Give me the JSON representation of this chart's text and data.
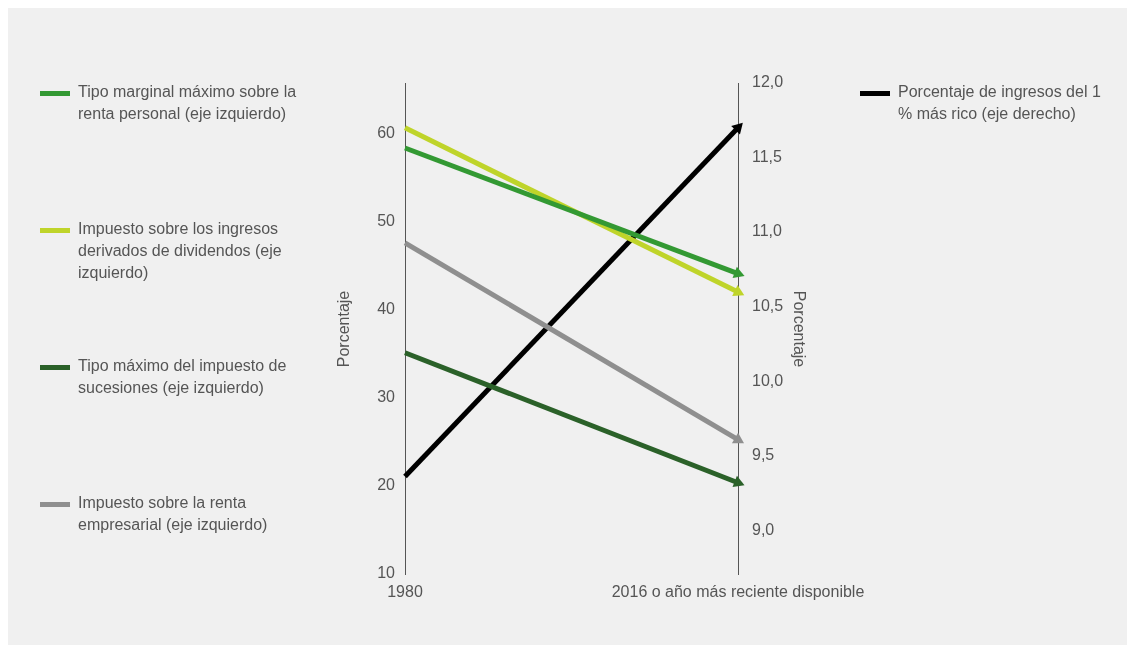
{
  "chart_data": {
    "type": "line",
    "categories": [
      "1980",
      "2016 o año más reciente disponible"
    ],
    "ylabel": "Porcentaje",
    "y2label": "Porcentaje",
    "ylim": [
      9.8,
      65.8
    ],
    "yticks": [
      10,
      20,
      30,
      40,
      50,
      60
    ],
    "y2lim": [
      8.7,
      12.0
    ],
    "y2ticks": [
      {
        "value": 9.0,
        "label": "9,0"
      },
      {
        "value": 9.5,
        "label": "9,5"
      },
      {
        "value": 10.0,
        "label": "10,0"
      },
      {
        "value": 10.5,
        "label": "10,5"
      },
      {
        "value": 11.0,
        "label": "11,0"
      },
      {
        "value": 11.5,
        "label": "11,5"
      },
      {
        "value": 12.0,
        "label": "12,0"
      }
    ],
    "series": [
      {
        "name": "Tipo marginal máximo sobre la renta personal (eje izquierdo)",
        "color": "#339933",
        "values": [
          58.4,
          44.1
        ]
      },
      {
        "name": "Impuesto sobre los ingresos derivados de dividendos (eje izquierdo)",
        "color": "#bfd42a",
        "values": [
          60.7,
          42.0
        ]
      },
      {
        "name": "Tipo máximo del impuesto de sucesiones (eje izquierdo)",
        "color": "#2b6129",
        "values": [
          35.1,
          20.3
        ]
      },
      {
        "name": "Impuesto sobre la renta empresarial (eje izquierdo)",
        "color": "#8f8f8f",
        "values": [
          47.6,
          25.2
        ]
      },
      {
        "name": "Porcentaje de ingresos del 1 % más rico (eje derecho)",
        "color": "#000000",
        "values": [
          9.36,
          11.7
        ],
        "axis": "y2"
      }
    ],
    "grid": "x",
    "legend": "left",
    "marker": "triangle",
    "line_style": "solid"
  }
}
